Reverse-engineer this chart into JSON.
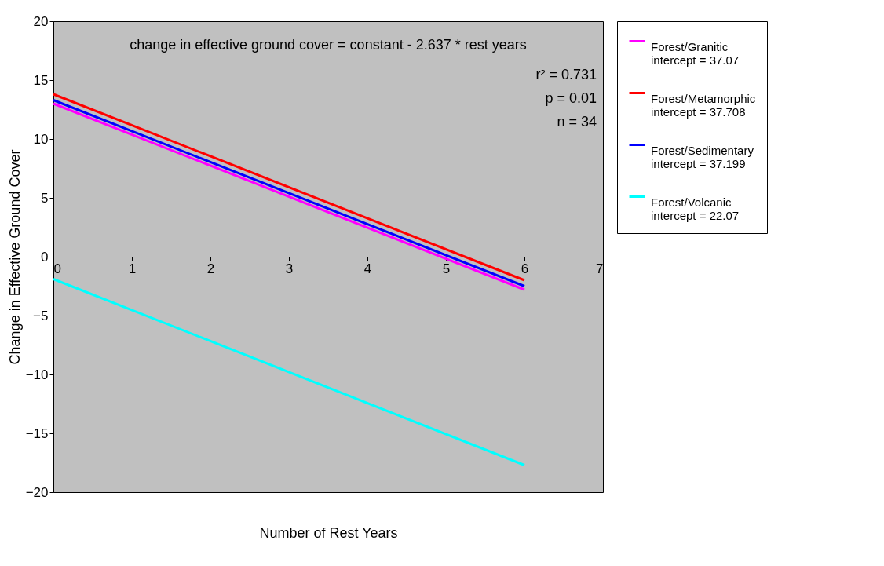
{
  "chart_data": {
    "type": "line",
    "xlabel": "Number of Rest Years",
    "ylabel": "Change in Effective Ground Cover",
    "x": [
      0,
      6
    ],
    "series": [
      {
        "name": "Forest/Granitic\nintercept = 37.07",
        "color": "#ff00ff",
        "values": [
          13.0,
          -2.8
        ]
      },
      {
        "name": "Forest/Metamorphic\nintercept = 37.708",
        "color": "#ff0000",
        "values": [
          13.8,
          -2.0
        ]
      },
      {
        "name": "Forest/Sedimentary\nintercept = 37.199",
        "color": "#0000ff",
        "values": [
          13.3,
          -2.5
        ]
      },
      {
        "name": "Forest/Volcanic\nintercept = 22.07",
        "color": "#00ffff",
        "values": [
          -1.9,
          -17.7
        ]
      }
    ],
    "xlim": [
      0,
      7
    ],
    "xticks": [
      0,
      1,
      2,
      3,
      4,
      5,
      6,
      7
    ],
    "ylim": [
      -20,
      20
    ],
    "yticks": [
      -20,
      -15,
      -10,
      -5,
      0,
      5,
      10,
      15,
      20
    ],
    "grid": false,
    "legend": "right",
    "marker": "none",
    "line_style": "solid",
    "annotations": [
      "change in effective ground cover = constant - 2.637 * rest years",
      "r² = 0.731\np = 0.01\nn = 34"
    ]
  }
}
